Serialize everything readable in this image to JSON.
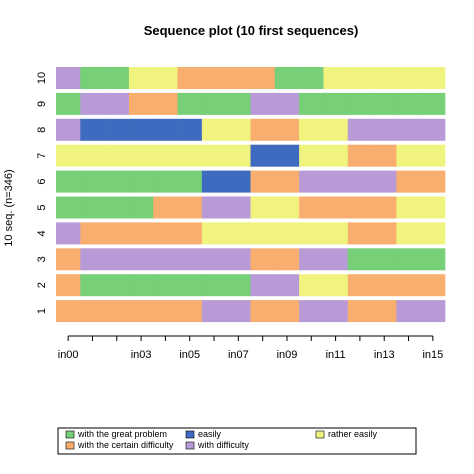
{
  "chart_data": {
    "type": "sequence-index",
    "title": "Sequence plot (10 first sequences)",
    "ylabel": "10 seq. (n=346)",
    "x_tick_labels": [
      "in00",
      "in03",
      "in05",
      "in07",
      "in09",
      "in11",
      "in13",
      "in15"
    ],
    "time_points": [
      "in00",
      "in01",
      "in02",
      "in03",
      "in04",
      "in05",
      "in06",
      "in07",
      "in08",
      "in09",
      "in10",
      "in11",
      "in12",
      "in13",
      "in14",
      "in15"
    ],
    "sequence_labels": [
      "1",
      "2",
      "3",
      "4",
      "5",
      "6",
      "7",
      "8",
      "9",
      "10"
    ],
    "states": [
      {
        "name": "with the great problem",
        "color": "#77cf77"
      },
      {
        "name": "with difficulty",
        "color": "#b89ad6"
      },
      {
        "name": "with the certain difficulty",
        "color": "#f8ae6e"
      },
      {
        "name": "rather easily",
        "color": "#f1f37f"
      },
      {
        "name": "easily",
        "color": "#3e6bbf"
      }
    ],
    "sequences": [
      {
        "label": "1",
        "states": [
          2,
          2,
          2,
          2,
          2,
          2,
          1,
          1,
          2,
          2,
          1,
          1,
          2,
          2,
          1,
          1
        ]
      },
      {
        "label": "2",
        "states": [
          2,
          0,
          0,
          0,
          0,
          0,
          0,
          0,
          1,
          1,
          3,
          3,
          2,
          2,
          2,
          2
        ]
      },
      {
        "label": "3",
        "states": [
          2,
          1,
          1,
          1,
          1,
          1,
          1,
          1,
          2,
          2,
          1,
          1,
          0,
          0,
          0,
          0
        ]
      },
      {
        "label": "4",
        "states": [
          1,
          2,
          2,
          2,
          2,
          2,
          3,
          3,
          3,
          3,
          3,
          3,
          2,
          2,
          3,
          3
        ]
      },
      {
        "label": "5",
        "states": [
          0,
          0,
          0,
          0,
          2,
          2,
          1,
          1,
          3,
          3,
          2,
          2,
          2,
          2,
          3,
          3
        ]
      },
      {
        "label": "6",
        "states": [
          0,
          0,
          0,
          0,
          0,
          0,
          4,
          4,
          2,
          2,
          1,
          1,
          1,
          1,
          2,
          2
        ]
      },
      {
        "label": "7",
        "states": [
          3,
          3,
          3,
          3,
          3,
          3,
          3,
          3,
          4,
          4,
          3,
          3,
          2,
          2,
          3,
          3
        ]
      },
      {
        "label": "8",
        "states": [
          1,
          4,
          4,
          4,
          4,
          4,
          3,
          3,
          2,
          2,
          3,
          3,
          1,
          1,
          1,
          1
        ]
      },
      {
        "label": "9",
        "states": [
          0,
          1,
          1,
          2,
          2,
          0,
          0,
          0,
          1,
          1,
          0,
          0,
          0,
          0,
          0,
          0
        ]
      },
      {
        "label": "10",
        "states": [
          1,
          0,
          0,
          3,
          3,
          2,
          2,
          2,
          2,
          0,
          0,
          3,
          3,
          3,
          3,
          3
        ]
      }
    ],
    "legend_order": [
      0,
      2,
      4,
      1,
      3
    ],
    "legend_position": "bottom",
    "grid": false
  }
}
